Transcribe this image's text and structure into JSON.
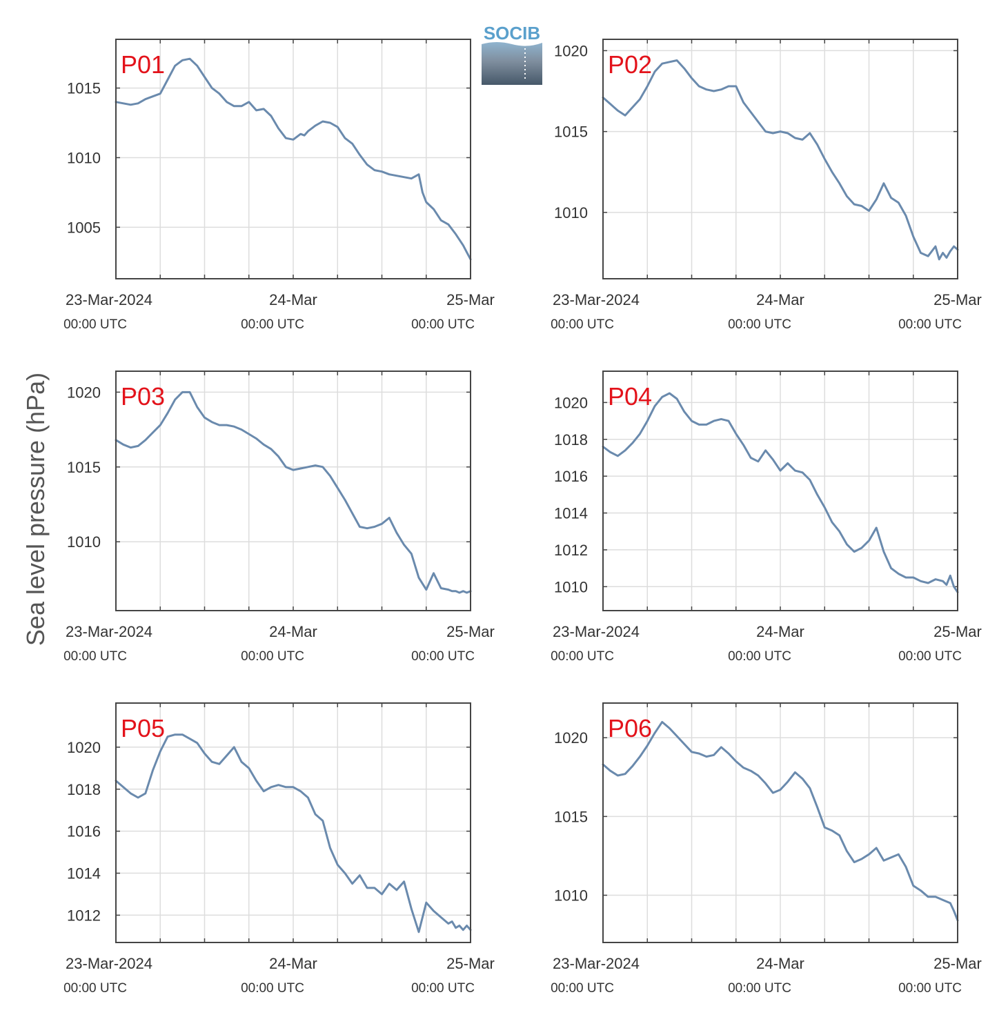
{
  "figure": {
    "ylabel": "Sea level pressure (hPa)",
    "logo_text": "SOCIB",
    "line_color": "#6a8aad",
    "label_color": "#e3131b",
    "grid_color": "#dddddd",
    "axis_color": "#444444"
  },
  "chart_data": [
    {
      "type": "line",
      "station": "P01",
      "x_ticks": [
        {
          "label": "23-Mar-2024",
          "sub": "00:00 UTC"
        },
        {
          "label": "24-Mar",
          "sub": "00:00 UTC"
        },
        {
          "label": "25-Mar",
          "sub": "00:00 UTC"
        }
      ],
      "xlim": [
        0,
        48
      ],
      "ylim": [
        1001.3,
        1018.5
      ],
      "yticks": [
        1005,
        1010,
        1015
      ],
      "series": [
        {
          "x": [
            0,
            1,
            2,
            3,
            4,
            5,
            5.5,
            6,
            7,
            8,
            9,
            10,
            11,
            12,
            13,
            14,
            15,
            16,
            17,
            18,
            19,
            20,
            21,
            22,
            23,
            24,
            25,
            25.5,
            26,
            27,
            28,
            29,
            30,
            31,
            32,
            33,
            34,
            35,
            36,
            37,
            38,
            39,
            40,
            41,
            41.5,
            42,
            43,
            44,
            45,
            46,
            47,
            47.5,
            48
          ],
          "y": [
            1014.0,
            1013.9,
            1013.8,
            1013.9,
            1014.2,
            1014.4,
            1014.5,
            1014.6,
            1015.6,
            1016.6,
            1017.0,
            1017.1,
            1016.6,
            1015.8,
            1015.0,
            1014.6,
            1014.0,
            1013.7,
            1013.7,
            1014.0,
            1013.4,
            1013.5,
            1013.0,
            1012.1,
            1011.4,
            1011.3,
            1011.7,
            1011.6,
            1011.9,
            1012.3,
            1012.6,
            1012.5,
            1012.2,
            1011.4,
            1011.0,
            1010.2,
            1009.5,
            1009.1,
            1009.0,
            1008.8,
            1008.7,
            1008.6,
            1008.5,
            1008.8,
            1007.5,
            1006.8,
            1006.3,
            1005.5,
            1005.2,
            1004.5,
            1003.7,
            1003.2,
            1002.7
          ]
        }
      ]
    },
    {
      "type": "line",
      "station": "P02",
      "x_ticks": [
        {
          "label": "23-Mar-2024",
          "sub": "00:00 UTC"
        },
        {
          "label": "24-Mar",
          "sub": "00:00 UTC"
        },
        {
          "label": "25-Mar",
          "sub": "00:00 UTC"
        }
      ],
      "xlim": [
        0,
        48
      ],
      "ylim": [
        1005.9,
        1020.7
      ],
      "yticks": [
        1010,
        1015,
        1020
      ],
      "series": [
        {
          "x": [
            0,
            1,
            2,
            3,
            4,
            5,
            6,
            7,
            8,
            9,
            10,
            11,
            12,
            13,
            14,
            15,
            16,
            17,
            18,
            19,
            20,
            21,
            22,
            23,
            24,
            25,
            26,
            27,
            28,
            29,
            30,
            31,
            32,
            33,
            34,
            35,
            36,
            37,
            38,
            39,
            40,
            41,
            42,
            43,
            44,
            45,
            45.5,
            46,
            46.5,
            47,
            47.5,
            48
          ],
          "y": [
            1017.1,
            1016.7,
            1016.3,
            1016.0,
            1016.5,
            1017.0,
            1017.8,
            1018.7,
            1019.2,
            1019.3,
            1019.4,
            1018.9,
            1018.3,
            1017.8,
            1017.6,
            1017.5,
            1017.6,
            1017.8,
            1017.8,
            1016.8,
            1016.2,
            1015.6,
            1015.0,
            1014.9,
            1015.0,
            1014.9,
            1014.6,
            1014.5,
            1014.9,
            1014.2,
            1013.3,
            1012.5,
            1011.8,
            1011.0,
            1010.5,
            1010.4,
            1010.1,
            1010.8,
            1011.8,
            1010.9,
            1010.6,
            1009.8,
            1008.5,
            1007.5,
            1007.3,
            1007.9,
            1007.1,
            1007.5,
            1007.2,
            1007.6,
            1007.9,
            1007.7
          ]
        }
      ]
    },
    {
      "type": "line",
      "station": "P03",
      "x_ticks": [
        {
          "label": "23-Mar-2024",
          "sub": "00:00 UTC"
        },
        {
          "label": "24-Mar",
          "sub": "00:00 UTC"
        },
        {
          "label": "25-Mar",
          "sub": "00:00 UTC"
        }
      ],
      "xlim": [
        0,
        48
      ],
      "ylim": [
        1005.4,
        1021.4
      ],
      "yticks": [
        1010,
        1015,
        1020
      ],
      "series": [
        {
          "x": [
            0,
            1,
            2,
            3,
            4,
            5,
            6,
            7,
            8,
            9,
            10,
            11,
            12,
            13,
            14,
            15,
            16,
            17,
            18,
            19,
            20,
            21,
            22,
            23,
            24,
            25,
            26,
            27,
            28,
            29,
            30,
            31,
            32,
            33,
            34,
            35,
            36,
            37,
            38,
            39,
            40,
            41,
            42,
            43,
            44,
            45,
            45.5,
            46,
            46.5,
            47,
            47.5,
            48
          ],
          "y": [
            1016.8,
            1016.5,
            1016.3,
            1016.4,
            1016.8,
            1017.3,
            1017.8,
            1018.6,
            1019.5,
            1020.0,
            1020.0,
            1019.0,
            1018.3,
            1018.0,
            1017.8,
            1017.8,
            1017.7,
            1017.5,
            1017.2,
            1016.9,
            1016.5,
            1016.2,
            1015.7,
            1015.0,
            1014.8,
            1014.9,
            1015.0,
            1015.1,
            1015.0,
            1014.4,
            1013.6,
            1012.8,
            1011.9,
            1011.0,
            1010.9,
            1011.0,
            1011.2,
            1011.6,
            1010.6,
            1009.8,
            1009.2,
            1007.6,
            1006.8,
            1007.9,
            1006.9,
            1006.8,
            1006.7,
            1006.7,
            1006.6,
            1006.7,
            1006.6,
            1006.7
          ]
        }
      ]
    },
    {
      "type": "line",
      "station": "P04",
      "x_ticks": [
        {
          "label": "23-Mar-2024",
          "sub": "00:00 UTC"
        },
        {
          "label": "24-Mar",
          "sub": "00:00 UTC"
        },
        {
          "label": "25-Mar",
          "sub": "00:00 UTC"
        }
      ],
      "xlim": [
        0,
        48
      ],
      "ylim": [
        1008.7,
        1021.7
      ],
      "yticks": [
        1010,
        1012,
        1014,
        1016,
        1018,
        1020
      ],
      "series": [
        {
          "x": [
            0,
            1,
            2,
            3,
            4,
            5,
            6,
            7,
            8,
            9,
            10,
            11,
            12,
            13,
            14,
            15,
            16,
            17,
            18,
            19,
            20,
            21,
            22,
            23,
            24,
            25,
            26,
            27,
            28,
            29,
            30,
            31,
            32,
            33,
            34,
            35,
            36,
            37,
            38,
            39,
            40,
            41,
            42,
            43,
            44,
            45,
            46,
            46.5,
            47,
            47.5,
            48
          ],
          "y": [
            1017.6,
            1017.3,
            1017.1,
            1017.4,
            1017.8,
            1018.3,
            1019.0,
            1019.8,
            1020.3,
            1020.5,
            1020.2,
            1019.5,
            1019.0,
            1018.8,
            1018.8,
            1019.0,
            1019.1,
            1019.0,
            1018.3,
            1017.7,
            1017.0,
            1016.8,
            1017.4,
            1016.9,
            1016.3,
            1016.7,
            1016.3,
            1016.2,
            1015.8,
            1015.0,
            1014.3,
            1013.5,
            1013.0,
            1012.3,
            1011.9,
            1012.1,
            1012.5,
            1013.2,
            1011.9,
            1011.0,
            1010.7,
            1010.5,
            1010.5,
            1010.3,
            1010.2,
            1010.4,
            1010.3,
            1010.1,
            1010.6,
            1010.0,
            1009.7
          ]
        }
      ]
    },
    {
      "type": "line",
      "station": "P05",
      "x_ticks": [
        {
          "label": "23-Mar-2024",
          "sub": "00:00 UTC"
        },
        {
          "label": "24-Mar",
          "sub": "00:00 UTC"
        },
        {
          "label": "25-Mar",
          "sub": "00:00 UTC"
        }
      ],
      "xlim": [
        0,
        48
      ],
      "ylim": [
        1010.7,
        1022.1
      ],
      "yticks": [
        1012,
        1014,
        1016,
        1018,
        1020
      ],
      "series": [
        {
          "x": [
            0,
            1,
            2,
            3,
            4,
            5,
            6,
            7,
            8,
            9,
            10,
            11,
            12,
            13,
            14,
            15,
            16,
            17,
            18,
            19,
            20,
            21,
            22,
            23,
            24,
            25,
            26,
            27,
            28,
            29,
            30,
            31,
            32,
            33,
            34,
            35,
            36,
            37,
            38,
            39,
            40,
            41,
            42,
            43,
            44,
            45,
            45.5,
            46,
            46.5,
            47,
            47.5,
            48
          ],
          "y": [
            1018.4,
            1018.1,
            1017.8,
            1017.6,
            1017.8,
            1018.9,
            1019.8,
            1020.5,
            1020.6,
            1020.6,
            1020.4,
            1020.2,
            1019.7,
            1019.3,
            1019.2,
            1019.6,
            1020.0,
            1019.3,
            1019.0,
            1018.4,
            1017.9,
            1018.1,
            1018.2,
            1018.1,
            1018.1,
            1017.9,
            1017.6,
            1016.8,
            1016.5,
            1015.2,
            1014.4,
            1014.0,
            1013.5,
            1013.9,
            1013.3,
            1013.3,
            1013.0,
            1013.5,
            1013.2,
            1013.6,
            1012.3,
            1011.2,
            1012.6,
            1012.2,
            1011.9,
            1011.6,
            1011.7,
            1011.4,
            1011.5,
            1011.3,
            1011.5,
            1011.3
          ]
        }
      ]
    },
    {
      "type": "line",
      "station": "P06",
      "x_ticks": [
        {
          "label": "23-Mar-2024",
          "sub": "00:00 UTC"
        },
        {
          "label": "24-Mar",
          "sub": "00:00 UTC"
        },
        {
          "label": "25-Mar",
          "sub": "00:00 UTC"
        }
      ],
      "xlim": [
        0,
        48
      ],
      "ylim": [
        1007.0,
        1022.2
      ],
      "yticks": [
        1010,
        1015,
        1020
      ],
      "series": [
        {
          "x": [
            0,
            1,
            2,
            3,
            4,
            5,
            6,
            7,
            8,
            9,
            10,
            11,
            12,
            13,
            14,
            15,
            16,
            17,
            18,
            19,
            20,
            21,
            22,
            23,
            24,
            25,
            26,
            27,
            28,
            29,
            30,
            31,
            32,
            33,
            34,
            35,
            36,
            37,
            38,
            39,
            40,
            41,
            42,
            43,
            44,
            45,
            46,
            46.5,
            47,
            47.5,
            48
          ],
          "y": [
            1018.3,
            1017.9,
            1017.6,
            1017.7,
            1018.2,
            1018.8,
            1019.5,
            1020.3,
            1021.0,
            1020.6,
            1020.1,
            1019.6,
            1019.1,
            1019.0,
            1018.8,
            1018.9,
            1019.4,
            1019.0,
            1018.5,
            1018.1,
            1017.9,
            1017.6,
            1017.1,
            1016.5,
            1016.7,
            1017.2,
            1017.8,
            1017.4,
            1016.8,
            1015.6,
            1014.3,
            1014.1,
            1013.8,
            1012.8,
            1012.1,
            1012.3,
            1012.6,
            1013.0,
            1012.2,
            1012.4,
            1012.6,
            1011.8,
            1010.6,
            1010.3,
            1009.9,
            1009.9,
            1009.7,
            1009.6,
            1009.5,
            1009.0,
            1008.4
          ]
        }
      ]
    }
  ]
}
